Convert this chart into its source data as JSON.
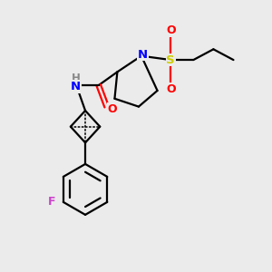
{
  "bg_color": "#ebebeb",
  "bond_color": "#000000",
  "N_color": "#0000ff",
  "O_color": "#ff0000",
  "S_color": "#cccc00",
  "F_color": "#cc44cc",
  "line_width": 1.6,
  "figsize": [
    3.0,
    3.0
  ],
  "dpi": 100,
  "xlim": [
    0,
    10
  ],
  "ylim": [
    0,
    10
  ]
}
